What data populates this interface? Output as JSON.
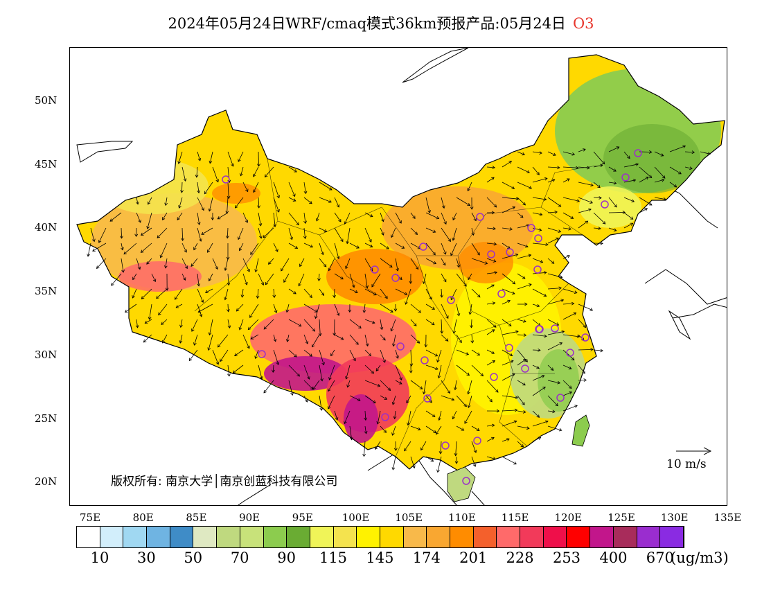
{
  "header": {
    "title": "2024年05月24日WRF/cmaq模式36km预报产品:05月24日",
    "pollutant": "O3",
    "pollutant_color": "#e8372e"
  },
  "map": {
    "lat_labels": [
      "50N",
      "45N",
      "40N",
      "35N",
      "30N",
      "25N",
      "20N"
    ],
    "lon_labels": [
      "75E",
      "80E",
      "85E",
      "90E",
      "95E",
      "100E",
      "105E",
      "110E",
      "115E",
      "120E",
      "125E",
      "130E",
      "135E"
    ],
    "copyright": "版权所有: 南京大学│南京创蓝科技有限公司",
    "wind_reference": "10 m/s",
    "station_marker_color": "#9b30c8"
  },
  "legend": {
    "colors": [
      "#ffffff",
      "#d2eefb",
      "#a0d8f2",
      "#6fb4e2",
      "#3f8cc7",
      "#dfe9c2",
      "#bfd97f",
      "#c8e27a",
      "#8ccc4e",
      "#6aac33",
      "#f0f458",
      "#f4e34e",
      "#fff200",
      "#ffd900",
      "#f8b94a",
      "#f9a731",
      "#ff8c00",
      "#f4602c",
      "#ff6a6a",
      "#f23a5a",
      "#ef0f4a",
      "#ff0000",
      "#c2168b",
      "#a82c5b",
      "#9a2dcf",
      "#8a2be2"
    ],
    "labels": [
      "10",
      "30",
      "50",
      "70",
      "90",
      "115",
      "145",
      "174",
      "201",
      "228",
      "253",
      "400",
      "670"
    ],
    "unit": "(ug/m3)"
  }
}
